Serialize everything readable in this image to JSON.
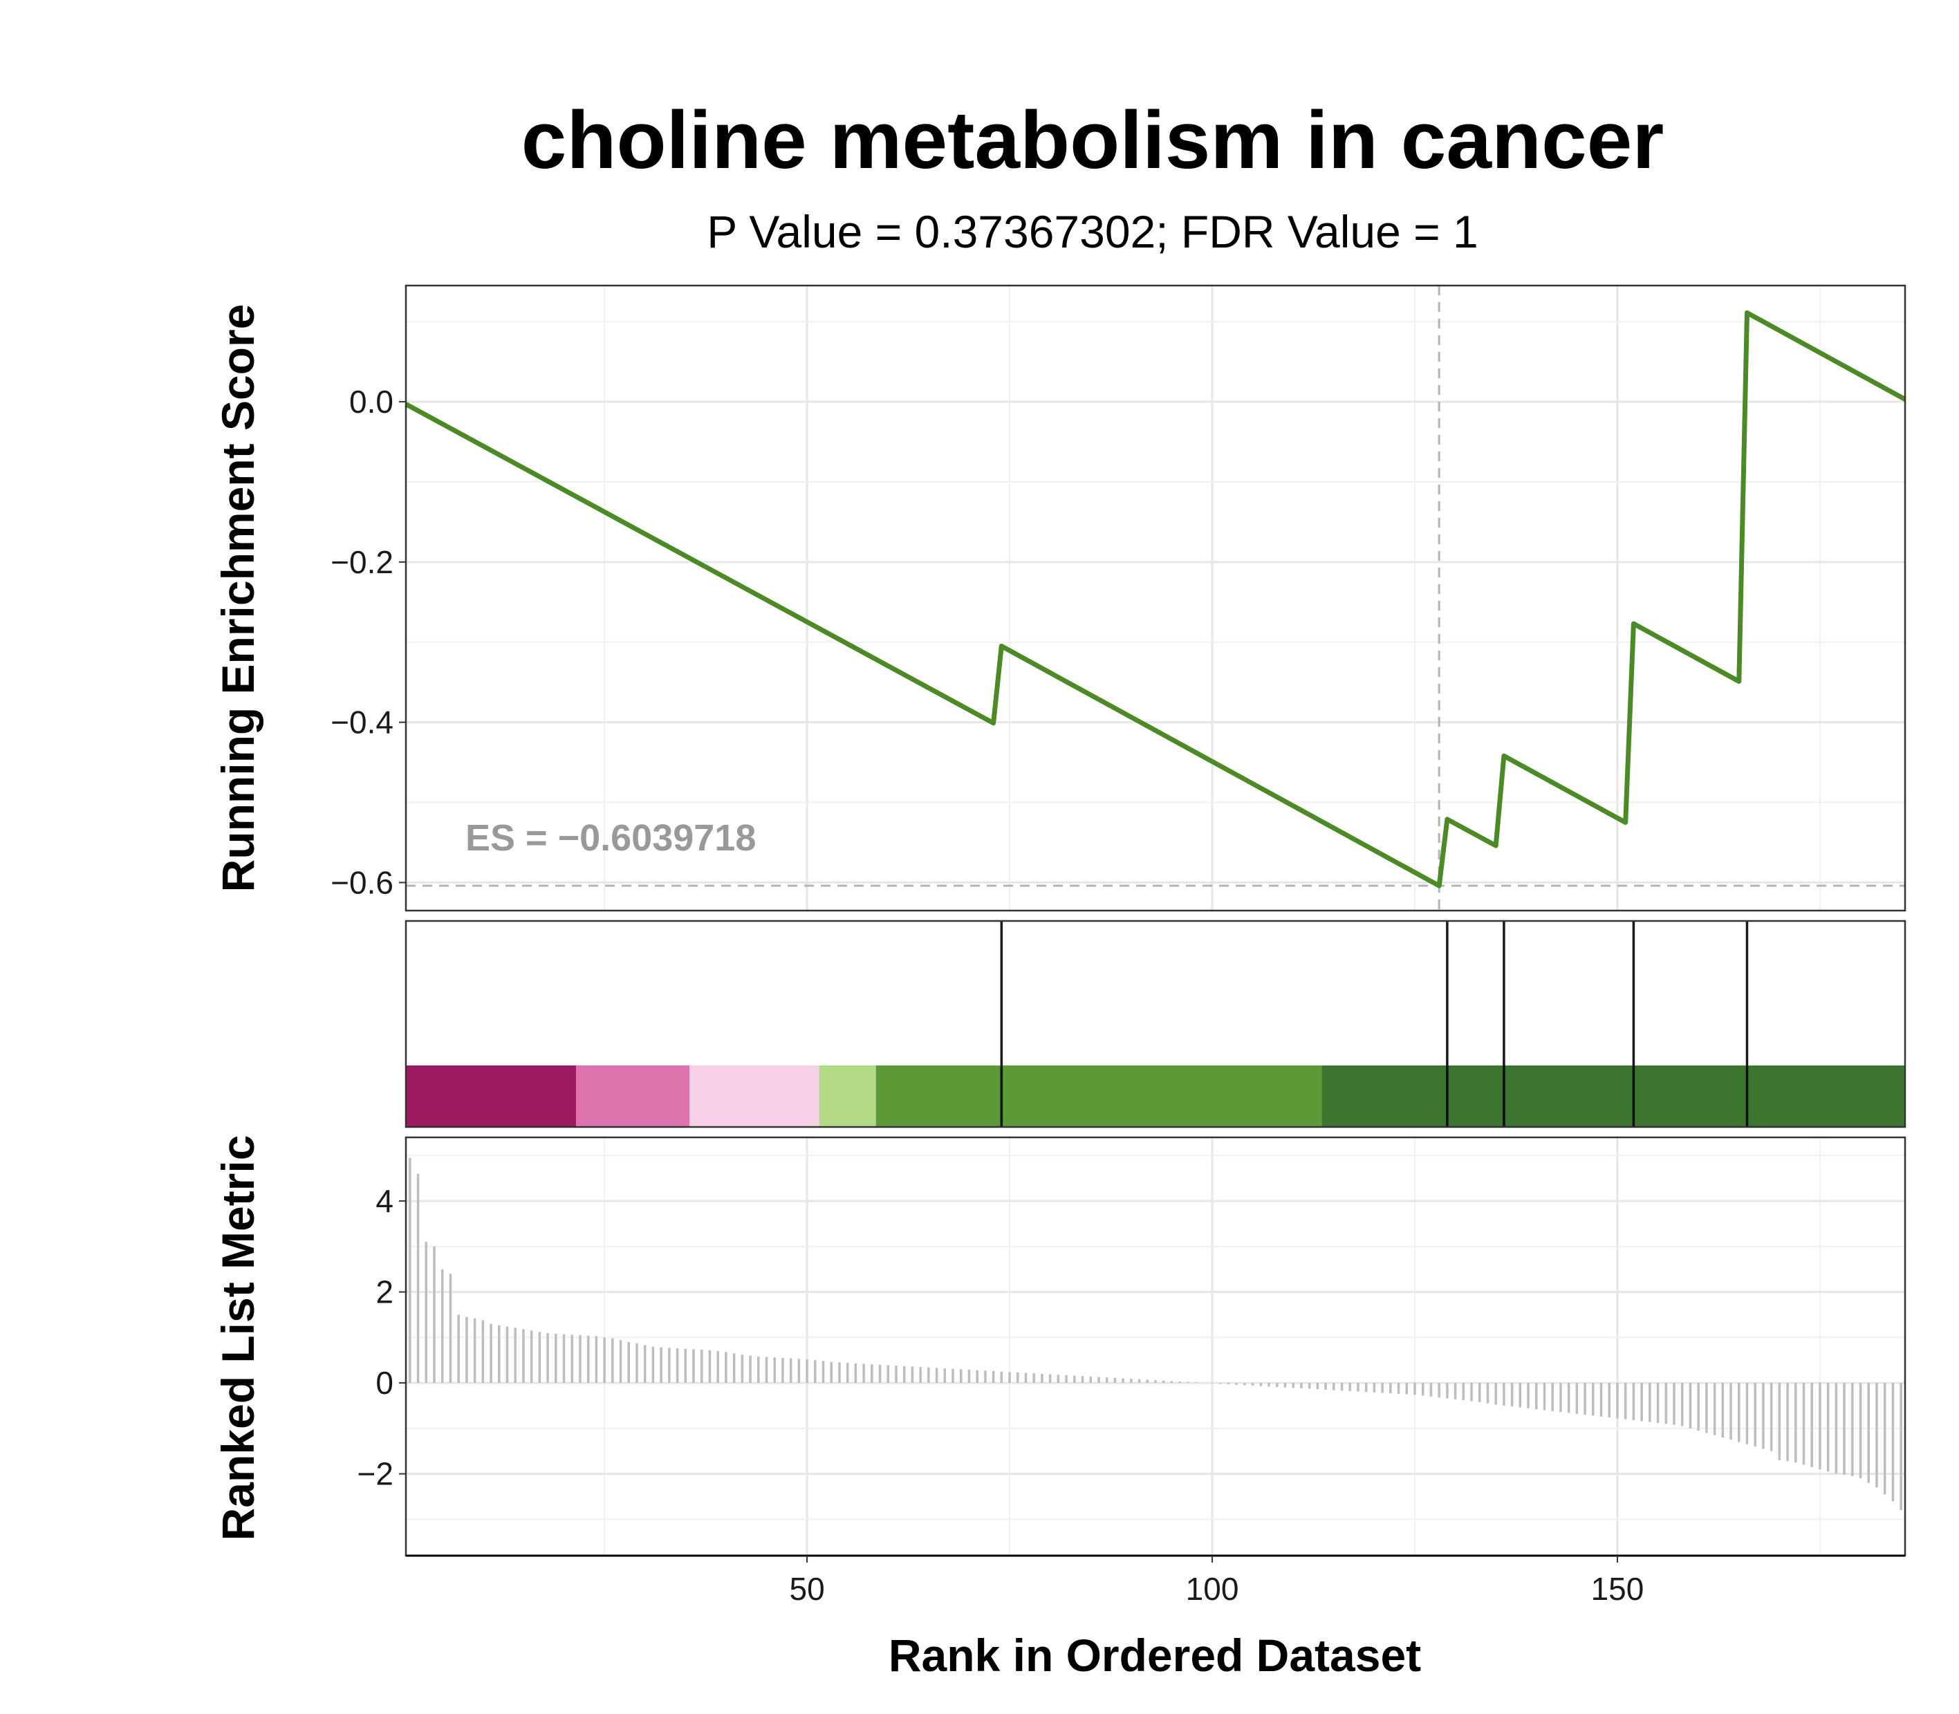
{
  "chart_data": {
    "type": "line",
    "title": "choline metabolism in cancer",
    "subtitle": "P Value = 0.37367302; FDR Value = 1",
    "es_label": "ES = −0.6039718",
    "es": -0.6039718,
    "es_position": 128,
    "xlabel": "Rank in Ordered Dataset",
    "xlim": [
      0.5,
      185.5
    ],
    "x_ticks": [
      50,
      100,
      150
    ],
    "x_tick_labels": [
      "50",
      "100",
      "150"
    ],
    "panels": {
      "running_score": {
        "ylabel": "Running Enrichment Score",
        "ylim": [
          -0.635,
          0.145
        ],
        "y_ticks": [
          0.0,
          -0.2,
          -0.4,
          -0.6
        ],
        "y_tick_labels": [
          "0.0",
          "−0.2",
          "−0.4",
          "−0.6"
        ],
        "color": "#4b8a25",
        "points": [
          [
            0.5,
            -0.003
          ],
          [
            73,
            -0.401
          ],
          [
            74,
            -0.305
          ],
          [
            128,
            -0.604
          ],
          [
            129,
            -0.521
          ],
          [
            135,
            -0.554
          ],
          [
            136,
            -0.442
          ],
          [
            151,
            -0.525
          ],
          [
            152,
            -0.277
          ],
          [
            165,
            -0.349
          ],
          [
            166,
            0.111
          ],
          [
            185.5,
            0.003
          ]
        ]
      },
      "gene_hits": {
        "positions": [
          74,
          129,
          136,
          152,
          166
        ],
        "color_bands": [
          {
            "from": 0.5,
            "to": 21.5,
            "color": "#9c1a60"
          },
          {
            "from": 21.5,
            "to": 35.5,
            "color": "#dd73ad"
          },
          {
            "from": 35.5,
            "to": 51.5,
            "color": "#f6d0e6"
          },
          {
            "from": 51.5,
            "to": 58.5,
            "color": "#b2d985"
          },
          {
            "from": 58.5,
            "to": 113.5,
            "color": "#5c9937"
          },
          {
            "from": 113.5,
            "to": 185.5,
            "color": "#3c7530"
          }
        ]
      },
      "ranked_metric": {
        "ylabel": "Ranked List Metric",
        "ylim": [
          -3.8,
          5.4
        ],
        "y_ticks": [
          4,
          2,
          0,
          -2
        ],
        "y_tick_labels": [
          "4",
          "2",
          "0",
          "−2"
        ],
        "color": "#bdbdbd",
        "values": [
          4.95,
          4.6,
          3.1,
          3.0,
          2.5,
          2.4,
          1.5,
          1.45,
          1.42,
          1.38,
          1.3,
          1.27,
          1.24,
          1.21,
          1.18,
          1.15,
          1.12,
          1.1,
          1.08,
          1.07,
          1.06,
          1.05,
          1.04,
          1.03,
          1.0,
          0.98,
          0.94,
          0.9,
          0.87,
          0.83,
          0.8,
          0.78,
          0.77,
          0.76,
          0.75,
          0.74,
          0.73,
          0.72,
          0.7,
          0.68,
          0.65,
          0.62,
          0.6,
          0.58,
          0.57,
          0.56,
          0.55,
          0.54,
          0.53,
          0.52,
          0.5,
          0.48,
          0.46,
          0.45,
          0.44,
          0.43,
          0.42,
          0.41,
          0.4,
          0.39,
          0.38,
          0.37,
          0.36,
          0.35,
          0.34,
          0.33,
          0.32,
          0.31,
          0.3,
          0.29,
          0.28,
          0.27,
          0.26,
          0.25,
          0.24,
          0.23,
          0.22,
          0.21,
          0.2,
          0.19,
          0.18,
          0.17,
          0.16,
          0.15,
          0.14,
          0.13,
          0.12,
          0.11,
          0.1,
          0.09,
          0.08,
          0.07,
          0.06,
          0.05,
          0.04,
          0.03,
          0.02,
          0.01,
          0.0,
          -0.01,
          -0.02,
          -0.03,
          -0.04,
          -0.05,
          -0.06,
          -0.07,
          -0.08,
          -0.09,
          -0.1,
          -0.11,
          -0.12,
          -0.13,
          -0.14,
          -0.15,
          -0.16,
          -0.17,
          -0.18,
          -0.19,
          -0.2,
          -0.21,
          -0.22,
          -0.23,
          -0.24,
          -0.25,
          -0.26,
          -0.28,
          -0.3,
          -0.32,
          -0.34,
          -0.36,
          -0.38,
          -0.4,
          -0.42,
          -0.45,
          -0.48,
          -0.5,
          -0.52,
          -0.54,
          -0.56,
          -0.58,
          -0.6,
          -0.62,
          -0.64,
          -0.66,
          -0.68,
          -0.7,
          -0.72,
          -0.74,
          -0.76,
          -0.78,
          -0.8,
          -0.82,
          -0.84,
          -0.86,
          -0.88,
          -0.9,
          -0.92,
          -0.95,
          -1.0,
          -1.05,
          -1.1,
          -1.15,
          -1.2,
          -1.25,
          -1.3,
          -1.35,
          -1.4,
          -1.45,
          -1.5,
          -1.7,
          -1.72,
          -1.75,
          -1.8,
          -1.85,
          -1.9,
          -1.95,
          -2.0,
          -2.02,
          -2.05,
          -2.1,
          -2.2,
          -2.3,
          -2.45,
          -2.6,
          -2.8
        ]
      }
    }
  }
}
